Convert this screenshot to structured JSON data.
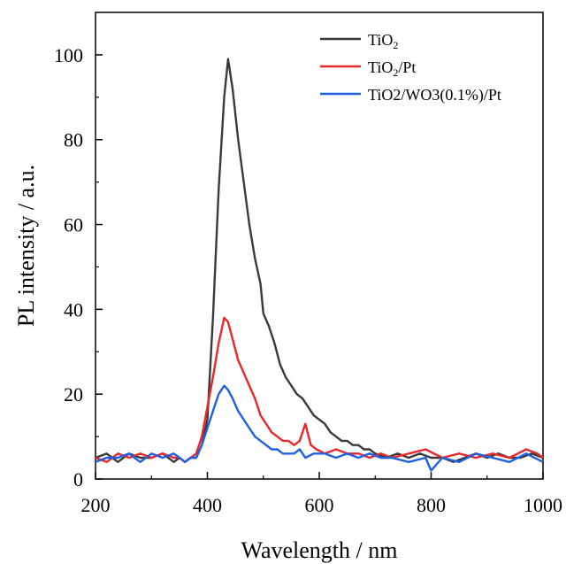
{
  "chart_data": {
    "type": "line",
    "title": "",
    "xlabel": "Wavelength / nm",
    "ylabel": "PL intensity / a.u.",
    "xlim": [
      200,
      1000
    ],
    "ylim": [
      0,
      110
    ],
    "x_ticks": [
      200,
      400,
      600,
      800,
      1000
    ],
    "y_ticks": [
      0,
      20,
      40,
      60,
      80,
      100
    ],
    "grid": false,
    "legend_position": "top-right",
    "series": [
      {
        "name": "TiO2",
        "legend_main": "TiO",
        "legend_sub": "2",
        "legend_tail": "",
        "color": "#3a3a3a",
        "x": [
          200,
          220,
          240,
          260,
          280,
          300,
          320,
          340,
          350,
          360,
          370,
          380,
          390,
          400,
          410,
          420,
          430,
          437,
          445,
          455,
          465,
          475,
          485,
          495,
          500,
          510,
          520,
          530,
          540,
          550,
          560,
          570,
          580,
          590,
          600,
          610,
          620,
          630,
          640,
          650,
          660,
          670,
          680,
          690,
          700,
          720,
          740,
          760,
          780,
          800,
          820,
          840,
          860,
          880,
          900,
          920,
          940,
          960,
          980,
          1000
        ],
        "y": [
          5,
          6,
          4,
          6,
          5,
          5,
          6,
          4,
          5,
          4,
          5,
          5,
          8,
          14,
          38,
          68,
          90,
          99,
          92,
          80,
          70,
          60,
          52,
          46,
          39,
          36,
          32,
          27,
          24,
          22,
          20,
          19,
          17,
          15,
          14,
          13,
          11,
          10,
          9,
          9,
          8,
          8,
          7,
          7,
          6,
          5,
          6,
          5,
          6,
          5,
          5,
          4,
          5,
          6,
          5,
          6,
          5,
          5,
          6,
          5
        ]
      },
      {
        "name": "TiO2/Pt",
        "legend_main": "TiO",
        "legend_sub": "2",
        "legend_tail": "/Pt",
        "color": "#e8282a",
        "x": [
          200,
          220,
          240,
          260,
          280,
          300,
          320,
          340,
          350,
          360,
          370,
          380,
          390,
          400,
          410,
          420,
          430,
          437,
          445,
          455,
          465,
          475,
          485,
          495,
          505,
          515,
          525,
          535,
          545,
          555,
          565,
          575,
          585,
          595,
          610,
          630,
          650,
          670,
          690,
          710,
          730,
          760,
          790,
          820,
          850,
          880,
          910,
          940,
          970,
          990,
          1000
        ],
        "y": [
          5,
          4,
          6,
          5,
          6,
          5,
          6,
          5,
          5,
          4,
          5,
          6,
          10,
          17,
          24,
          32,
          38,
          37,
          33,
          28,
          25,
          22,
          19,
          15,
          13,
          11,
          10,
          9,
          9,
          8,
          9,
          13,
          8,
          7,
          6,
          7,
          6,
          6,
          5,
          6,
          5,
          6,
          7,
          5,
          6,
          5,
          6,
          5,
          7,
          6,
          5
        ]
      },
      {
        "name": "TiO2/WO3(0.1%)/Pt",
        "legend_main": "TiO2/WO3(0.1%)/Pt",
        "legend_sub": "",
        "legend_tail": "",
        "color": "#2060e0",
        "x": [
          200,
          220,
          240,
          260,
          280,
          300,
          320,
          340,
          350,
          360,
          370,
          380,
          390,
          400,
          410,
          420,
          430,
          437,
          445,
          455,
          465,
          475,
          485,
          495,
          505,
          515,
          525,
          535,
          545,
          555,
          565,
          575,
          590,
          610,
          630,
          650,
          670,
          690,
          710,
          730,
          760,
          790,
          800,
          820,
          850,
          880,
          910,
          940,
          970,
          1000
        ],
        "y": [
          4,
          5,
          5,
          6,
          4,
          6,
          5,
          6,
          5,
          4,
          5,
          5,
          8,
          12,
          16,
          20,
          22,
          21,
          19,
          16,
          14,
          12,
          10,
          9,
          8,
          7,
          7,
          6,
          6,
          6,
          7,
          5,
          6,
          6,
          5,
          6,
          5,
          6,
          5,
          5,
          4,
          5,
          2,
          5,
          4,
          6,
          5,
          4,
          6,
          4
        ]
      }
    ]
  }
}
